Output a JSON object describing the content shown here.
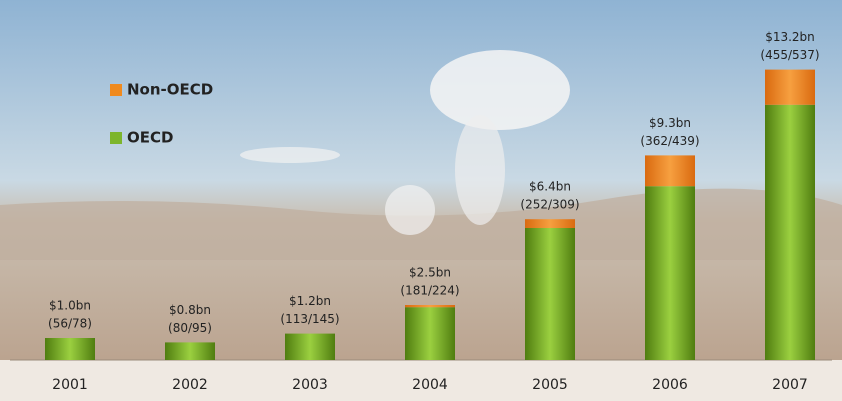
{
  "chart_data": {
    "type": "bar",
    "stacked": true,
    "categories": [
      "2001",
      "2002",
      "2003",
      "2004",
      "2005",
      "2006",
      "2007"
    ],
    "series": [
      {
        "name": "OECD",
        "color": "#7db52c",
        "values": [
          1.0,
          0.8,
          1.2,
          2.4,
          6.0,
          7.9,
          11.6
        ]
      },
      {
        "name": "Non-OECD",
        "color": "#f08a1e",
        "values": [
          0,
          0,
          0,
          0.1,
          0.4,
          1.4,
          1.6
        ]
      }
    ],
    "annotations": [
      {
        "total": "$1.0bn",
        "counts": "(56/78)"
      },
      {
        "total": "$0.8bn",
        "counts": "(80/95)"
      },
      {
        "total": "$1.2bn",
        "counts": "(113/145)"
      },
      {
        "total": "$2.5bn",
        "counts": "(181/224)"
      },
      {
        "total": "$6.4bn",
        "counts": "(252/309)"
      },
      {
        "total": "$9.3bn",
        "counts": "(362/439)"
      },
      {
        "total": "$13.2bn",
        "counts": "(455/537)"
      }
    ],
    "ylim": [
      0,
      14
    ]
  }
}
